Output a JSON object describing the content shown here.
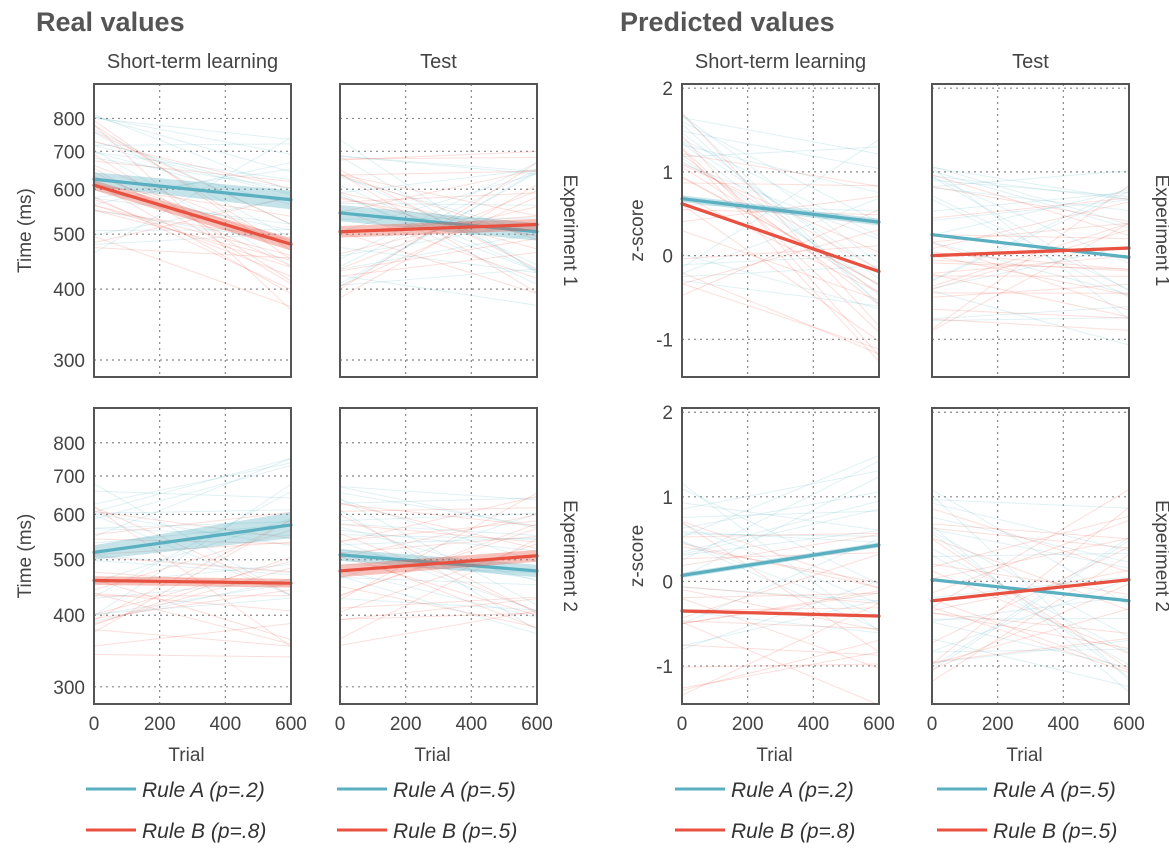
{
  "colors": {
    "rule_a": "#5aafc0",
    "rule_b": "#e8503f",
    "frame": "#555555",
    "grid": "#888888"
  },
  "sections": [
    {
      "title": "Real values"
    },
    {
      "title": "Predicted values"
    }
  ],
  "legends": [
    {
      "a": "Rule A (p=.2)",
      "b": "Rule B (p=.8)"
    },
    {
      "a": "Rule A (p=.5)",
      "b": "Rule B (p=.5)"
    },
    {
      "a": "Rule A (p=.2)",
      "b": "Rule B (p=.8)"
    },
    {
      "a": "Rule A (p=.5)",
      "b": "Rule B (p=.5)"
    }
  ],
  "chart_data": [
    {
      "type": "line",
      "section": "Real values",
      "column_titles": [
        "Short-term learning",
        "Test"
      ],
      "row_labels": [
        "Experiment 1",
        "Experiment 2"
      ],
      "xlabel": "Trial",
      "ylabel": "Time (ms)",
      "y_scale": "log",
      "xlim": [
        0,
        600
      ],
      "ylim": [
        280,
        920
      ],
      "x_ticks": [
        0,
        200,
        400,
        600
      ],
      "y_ticks": [
        300,
        400,
        500,
        600,
        700,
        800
      ],
      "panels": [
        {
          "row": 0,
          "col": 0,
          "series": [
            {
              "name": "Rule A (p=.2)",
              "color": "#5aafc0",
              "x": [
                0,
                600
              ],
              "y": [
                625,
                575
              ],
              "band": [
                18,
                22
              ]
            },
            {
              "name": "Rule B (p=.8)",
              "color": "#e8503f",
              "x": [
                0,
                600
              ],
              "y": [
                610,
                480
              ],
              "band": [
                12,
                12
              ]
            }
          ]
        },
        {
          "row": 0,
          "col": 1,
          "series": [
            {
              "name": "Rule A (p=.5)",
              "color": "#5aafc0",
              "x": [
                0,
                600
              ],
              "y": [
                545,
                505
              ],
              "band": [
                18,
                18
              ]
            },
            {
              "name": "Rule B (p=.5)",
              "color": "#e8503f",
              "x": [
                0,
                600
              ],
              "y": [
                505,
                520
              ],
              "band": [
                12,
                12
              ]
            }
          ]
        },
        {
          "row": 1,
          "col": 0,
          "series": [
            {
              "name": "Rule A (p=.2)",
              "color": "#5aafc0",
              "x": [
                0,
                600
              ],
              "y": [
                515,
                575
              ],
              "band": [
                15,
                30
              ]
            },
            {
              "name": "Rule B (p=.8)",
              "color": "#e8503f",
              "x": [
                0,
                600
              ],
              "y": [
                460,
                455
              ],
              "band": [
                8,
                8
              ]
            }
          ]
        },
        {
          "row": 1,
          "col": 1,
          "series": [
            {
              "name": "Rule A (p=.5)",
              "color": "#5aafc0",
              "x": [
                0,
                600
              ],
              "y": [
                510,
                478
              ],
              "band": [
                12,
                12
              ]
            },
            {
              "name": "Rule B (p=.5)",
              "color": "#e8503f",
              "x": [
                0,
                600
              ],
              "y": [
                478,
                508
              ],
              "band": [
                12,
                12
              ]
            }
          ]
        }
      ]
    },
    {
      "type": "line",
      "section": "Predicted values",
      "column_titles": [
        "Short-term learning",
        "Test"
      ],
      "row_labels": [
        "Experiment 1",
        "Experiment 2"
      ],
      "xlabel": "Trial",
      "ylabel": "z-score",
      "y_scale": "linear",
      "xlim": [
        0,
        600
      ],
      "ylim": [
        -1.45,
        2.05
      ],
      "x_ticks": [
        0,
        200,
        400,
        600
      ],
      "y_ticks": [
        -1,
        0,
        1,
        2
      ],
      "panels": [
        {
          "row": 0,
          "col": 0,
          "series": [
            {
              "name": "Rule A (p=.2)",
              "color": "#5aafc0",
              "x": [
                0,
                600
              ],
              "y": [
                0.68,
                0.4
              ],
              "band": [
                0.04,
                0.04
              ]
            },
            {
              "name": "Rule B (p=.8)",
              "color": "#e8503f",
              "x": [
                0,
                600
              ],
              "y": [
                0.62,
                -0.19
              ],
              "band": [
                0.02,
                0.02
              ]
            }
          ]
        },
        {
          "row": 0,
          "col": 1,
          "series": [
            {
              "name": "Rule A (p=.5)",
              "color": "#5aafc0",
              "x": [
                0,
                600
              ],
              "y": [
                0.25,
                -0.02
              ],
              "band": [
                0.02,
                0.02
              ]
            },
            {
              "name": "Rule B (p=.5)",
              "color": "#e8503f",
              "x": [
                0,
                600
              ],
              "y": [
                0.0,
                0.09
              ],
              "band": [
                0.02,
                0.02
              ]
            }
          ]
        },
        {
          "row": 1,
          "col": 0,
          "series": [
            {
              "name": "Rule A (p=.2)",
              "color": "#5aafc0",
              "x": [
                0,
                600
              ],
              "y": [
                0.07,
                0.43
              ],
              "band": [
                0.03,
                0.03
              ]
            },
            {
              "name": "Rule B (p=.8)",
              "color": "#e8503f",
              "x": [
                0,
                600
              ],
              "y": [
                -0.35,
                -0.41
              ],
              "band": [
                0.02,
                0.02
              ]
            }
          ]
        },
        {
          "row": 1,
          "col": 1,
          "series": [
            {
              "name": "Rule A (p=.5)",
              "color": "#5aafc0",
              "x": [
                0,
                600
              ],
              "y": [
                0.02,
                -0.23
              ],
              "band": [
                0.02,
                0.02
              ]
            },
            {
              "name": "Rule B (p=.5)",
              "color": "#e8503f",
              "x": [
                0,
                600
              ],
              "y": [
                -0.23,
                0.02
              ],
              "band": [
                0.02,
                0.02
              ]
            }
          ]
        }
      ]
    }
  ]
}
